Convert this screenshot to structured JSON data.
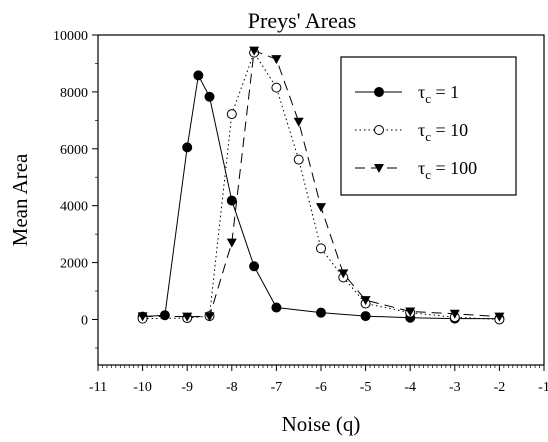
{
  "chart_data": {
    "type": "line",
    "title": "Preys' Areas",
    "xlabel": "Noise (q)",
    "ylabel": "Mean Area",
    "xlim": [
      -11,
      -1
    ],
    "ylim": [
      -1600,
      10000
    ],
    "xticks": [
      -11,
      -10,
      -9,
      -8,
      -7,
      -6,
      -5,
      -4,
      -3,
      -2,
      -1
    ],
    "xtick_labels": [
      "-11",
      "-10",
      "-9",
      "-8",
      "-7",
      "-6",
      "-5",
      "-4",
      "-3",
      "-2",
      "-1"
    ],
    "yticks": [
      0,
      2000,
      4000,
      6000,
      8000,
      10000
    ],
    "ytick_labels": [
      "0",
      "2000",
      "4000",
      "6000",
      "8000",
      "10000"
    ],
    "grid": false,
    "legend_position": "top-right",
    "series": [
      {
        "name": "1",
        "legend_prefix": "τ",
        "legend_sub": "c",
        "legend_suffix": " = 1",
        "marker": "filled-circle",
        "line": "solid",
        "color": "#000000",
        "x": [
          -10,
          -9.5,
          -9,
          -8.75,
          -8.5,
          -8,
          -7.5,
          -7,
          -6,
          -5,
          -4,
          -3,
          -2
        ],
        "y": [
          100,
          150,
          6050,
          8580,
          7830,
          4180,
          1870,
          420,
          240,
          120,
          60,
          30,
          30
        ]
      },
      {
        "name": "10",
        "legend_prefix": "τ",
        "legend_sub": "c",
        "legend_suffix": " = 10",
        "marker": "open-circle",
        "line": "dotted",
        "color": "#000000",
        "x": [
          -10,
          -9,
          -8.5,
          -8,
          -7.5,
          -7,
          -6.5,
          -6,
          -5.5,
          -5,
          -4,
          -3,
          -2
        ],
        "y": [
          30,
          50,
          120,
          7220,
          9380,
          8150,
          5620,
          2500,
          1480,
          560,
          240,
          80,
          0
        ]
      },
      {
        "name": "100",
        "legend_prefix": "τ",
        "legend_sub": "c",
        "legend_suffix": " = 100",
        "marker": "filled-triangle-down",
        "line": "dashed",
        "color": "#000000",
        "x": [
          -10,
          -9,
          -8.5,
          -8,
          -7.5,
          -7,
          -6.5,
          -6,
          -5.5,
          -5,
          -4,
          -3,
          -2
        ],
        "y": [
          110,
          100,
          110,
          2700,
          9450,
          9150,
          6950,
          3950,
          1620,
          680,
          280,
          200,
          100
        ]
      }
    ]
  }
}
